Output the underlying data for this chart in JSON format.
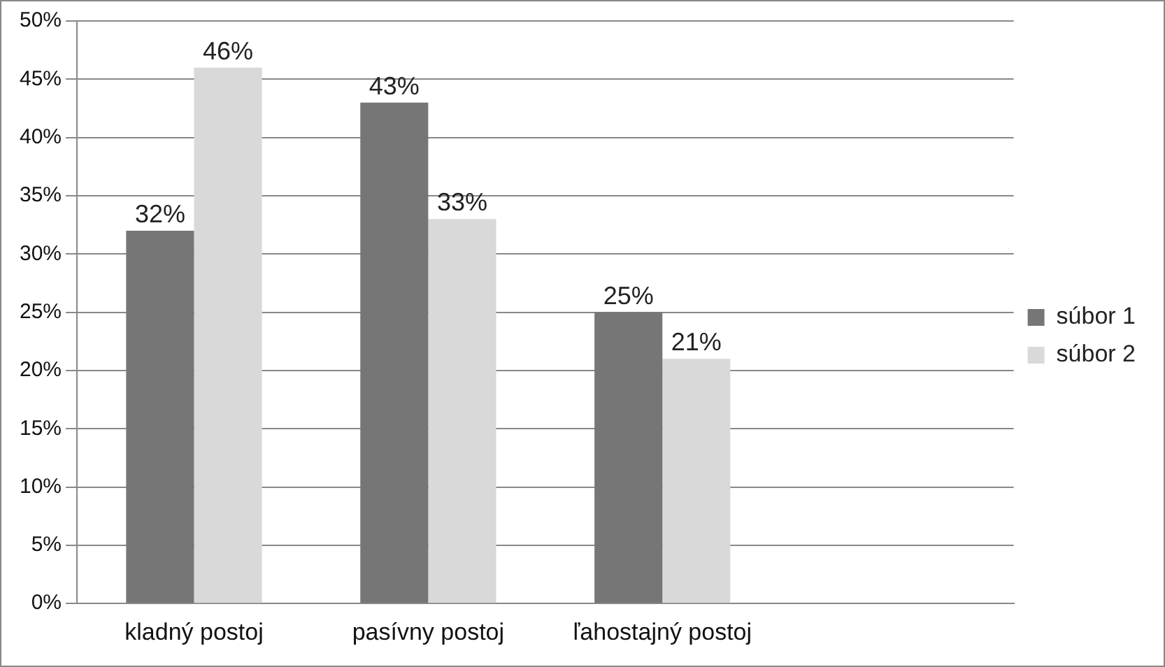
{
  "chart_data": {
    "type": "bar",
    "categories": [
      "kladný postoj",
      "pasívny postoj",
      "ľahostajný postoj",
      null
    ],
    "series": [
      {
        "name": "súbor 1",
        "color": "#767676",
        "values": [
          32,
          43,
          25,
          null
        ],
        "value_labels": [
          "32%",
          "43%",
          "25%",
          null
        ]
      },
      {
        "name": "súbor 2",
        "color": "#d9d9d9",
        "values": [
          46,
          33,
          21,
          null
        ],
        "value_labels": [
          "46%",
          "33%",
          "21%",
          null
        ]
      }
    ],
    "ylim": [
      0,
      50
    ],
    "yticks": [
      {
        "value": 0,
        "label": "0%"
      },
      {
        "value": 5,
        "label": "5%"
      },
      {
        "value": 10,
        "label": "10%"
      },
      {
        "value": 15,
        "label": "15%"
      },
      {
        "value": 20,
        "label": "20%"
      },
      {
        "value": 25,
        "label": "25%"
      },
      {
        "value": 30,
        "label": "30%"
      },
      {
        "value": 35,
        "label": "35%"
      },
      {
        "value": 40,
        "label": "40%"
      },
      {
        "value": 45,
        "label": "45%"
      },
      {
        "value": 50,
        "label": "50%"
      }
    ],
    "grid": "y",
    "legend": "right"
  }
}
